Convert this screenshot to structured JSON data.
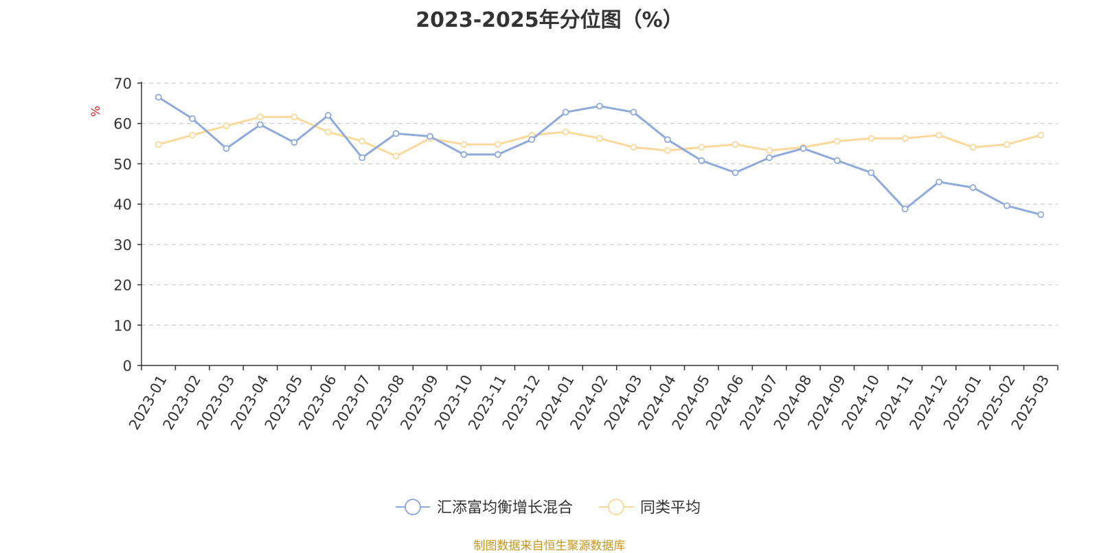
{
  "title": "2023-2025年分位图（%）",
  "source": "制图数据来自恒生聚源数据库",
  "colors": {
    "series1": "#8eaadb",
    "series2": "#fcd89a",
    "unit": "#e02020",
    "grid": "#cccccc",
    "source": "#c8961e"
  },
  "chart_data": {
    "type": "line",
    "title": "2023-2025年分位图（%）",
    "ylabel": "%",
    "xlabel": "",
    "ylim": [
      0,
      70
    ],
    "yticks": [
      0,
      10,
      20,
      30,
      40,
      50,
      60,
      70
    ],
    "grid": true,
    "legend_position": "bottom",
    "categories": [
      "2023-01",
      "2023-02",
      "2023-03",
      "2023-04",
      "2023-05",
      "2023-06",
      "2023-07",
      "2023-08",
      "2023-09",
      "2023-10",
      "2023-11",
      "2023-12",
      "2024-01",
      "2024-02",
      "2024-03",
      "2024-04",
      "2024-05",
      "2024-06",
      "2024-07",
      "2024-08",
      "2024-09",
      "2024-10",
      "2024-11",
      "2024-12",
      "2025-01",
      "2025-02",
      "2025-03"
    ],
    "series": [
      {
        "name": "汇添富均衡增长混合",
        "values": [
          66.5,
          61.2,
          53.8,
          59.7,
          55.3,
          62.0,
          51.5,
          57.5,
          56.8,
          52.3,
          52.3,
          56.0,
          62.8,
          64.3,
          62.8,
          56.0,
          50.8,
          47.8,
          51.5,
          53.8,
          50.8,
          47.8,
          38.8,
          45.5,
          44.1,
          39.6,
          37.4
        ]
      },
      {
        "name": "同类平均",
        "values": [
          54.8,
          57.1,
          59.4,
          61.6,
          61.6,
          57.9,
          55.6,
          51.9,
          56.3,
          54.8,
          54.8,
          57.1,
          57.9,
          56.3,
          54.1,
          53.3,
          54.1,
          54.8,
          53.3,
          54.1,
          55.6,
          56.3,
          56.3,
          57.1,
          54.1,
          54.8,
          57.1
        ]
      }
    ]
  }
}
